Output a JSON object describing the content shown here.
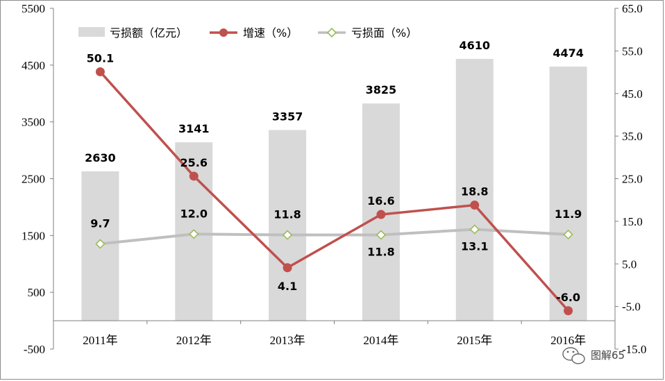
{
  "chart_data": {
    "type": "bar+line",
    "categories": [
      "2011年",
      "2012年",
      "2013年",
      "2014年",
      "2015年",
      "2016年"
    ],
    "bar_series": {
      "name": "亏损额（亿元）",
      "values": [
        2630,
        3141,
        3357,
        3825,
        4610,
        4474
      ],
      "labels": [
        "2630",
        "3141",
        "3357",
        "3825",
        "4610",
        "4474"
      ],
      "color": "#d9d9d9"
    },
    "line_series": [
      {
        "name": "增速（%）",
        "values": [
          50.1,
          25.6,
          4.1,
          16.6,
          18.8,
          -6.0
        ],
        "labels": [
          "50.1",
          "25.6",
          "4.1",
          "16.6",
          "18.8",
          "-6.0"
        ],
        "color": "#c0504d"
      },
      {
        "name": "亏损面（%）",
        "values": [
          9.7,
          12.0,
          11.8,
          11.8,
          13.1,
          11.9
        ],
        "labels": [
          "9.7",
          "12.0",
          "11.8",
          "11.8",
          "13.1",
          "11.9"
        ],
        "color": "#bfbfbf",
        "marker_color": "#9bbb59"
      }
    ],
    "y_left": {
      "range": [
        -500,
        5500
      ],
      "ticks": [
        -500,
        500,
        1500,
        2500,
        3500,
        4500,
        5500
      ],
      "tick_labels": [
        "-500",
        "500",
        "1500",
        "2500",
        "3500",
        "4500",
        "5500"
      ]
    },
    "y_right": {
      "range": [
        -15,
        65
      ],
      "ticks": [
        -15,
        -5,
        5,
        15,
        25,
        35,
        45,
        55,
        65
      ],
      "tick_labels": [
        "-15.0",
        "-5.0",
        "5.0",
        "15.0",
        "25.0",
        "35.0",
        "45.0",
        "55.0",
        "65.0"
      ]
    },
    "legend_position": "top-left",
    "grid": false
  },
  "watermark": "图解65"
}
